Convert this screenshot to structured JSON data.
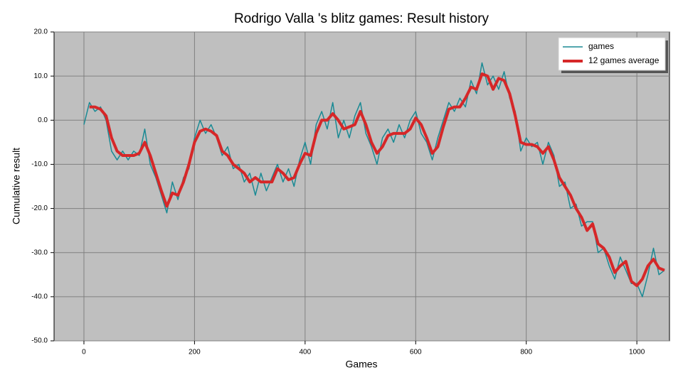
{
  "chart_data": {
    "type": "line",
    "title": "Rodrigo Valla 's blitz games: Result history",
    "x_label": "Games",
    "y_label": "Cumulative result",
    "x": [
      0,
      10,
      20,
      30,
      40,
      50,
      60,
      70,
      80,
      90,
      100,
      110,
      120,
      130,
      140,
      150,
      160,
      170,
      180,
      190,
      200,
      210,
      220,
      230,
      240,
      250,
      260,
      270,
      280,
      290,
      300,
      310,
      320,
      330,
      340,
      350,
      360,
      370,
      380,
      390,
      400,
      410,
      420,
      430,
      440,
      450,
      460,
      470,
      480,
      490,
      500,
      510,
      520,
      530,
      540,
      550,
      560,
      570,
      580,
      590,
      600,
      610,
      620,
      630,
      640,
      650,
      660,
      670,
      680,
      690,
      700,
      710,
      720,
      730,
      740,
      750,
      760,
      770,
      780,
      790,
      800,
      810,
      820,
      830,
      840,
      850,
      860,
      870,
      880,
      890,
      900,
      910,
      920,
      930,
      940,
      950,
      960,
      970,
      980,
      990,
      1000,
      1010,
      1020,
      1030,
      1040,
      1050
    ],
    "series": [
      {
        "name": "games",
        "color": "#1a8a94",
        "width": 1.5,
        "values": [
          -1,
          4,
          2,
          3,
          0,
          -7,
          -9,
          -7,
          -9,
          -7,
          -8,
          -2,
          -10,
          -13,
          -17,
          -21,
          -14,
          -18,
          -13,
          -11,
          -4,
          0,
          -3,
          -1,
          -4,
          -8,
          -6,
          -11,
          -10,
          -14,
          -12,
          -17,
          -12,
          -16,
          -13,
          -10,
          -14,
          -11,
          -15,
          -9,
          -5,
          -10,
          -1,
          2,
          -2,
          4,
          -4,
          0,
          -4,
          1,
          4,
          -3,
          -6,
          -10,
          -4,
          -2,
          -5,
          -1,
          -4,
          0,
          2,
          -3,
          -5,
          -9,
          -4,
          0,
          4,
          2,
          5,
          3,
          9,
          6,
          13,
          8,
          10,
          7,
          11,
          5,
          2,
          -7,
          -4,
          -6,
          -5,
          -10,
          -5,
          -8,
          -15,
          -14,
          -20,
          -19,
          -24,
          -23,
          -23,
          -30,
          -29,
          -33,
          -36,
          -31,
          -34,
          -37,
          -37,
          -40,
          -35,
          -29,
          -35,
          -34
        ]
      },
      {
        "name": "12 games average",
        "color": "#d62728",
        "width": 4,
        "values": [
          null,
          3,
          3,
          2.5,
          1,
          -4,
          -7,
          -8,
          -8,
          -8,
          -7.5,
          -5,
          -8,
          -12,
          -16,
          -19.5,
          -16.5,
          -17,
          -14,
          -10,
          -5,
          -2.5,
          -2,
          -2.5,
          -3.5,
          -7,
          -8,
          -10,
          -11,
          -12,
          -14,
          -13,
          -14,
          -14,
          -14,
          -11,
          -12,
          -13.5,
          -13,
          -10,
          -7.5,
          -8,
          -3,
          0,
          0,
          1.5,
          0,
          -2,
          -1.5,
          -1,
          2,
          -1,
          -5,
          -7.5,
          -6,
          -3.5,
          -3,
          -3,
          -3,
          -2,
          0.5,
          -1,
          -4,
          -7.5,
          -6,
          -1.5,
          2.5,
          3,
          3,
          5,
          7.5,
          7,
          10.5,
          10,
          7,
          9.5,
          9,
          6,
          1,
          -5,
          -5.5,
          -5.5,
          -6,
          -7.5,
          -6,
          -9,
          -13,
          -15,
          -17,
          -20,
          -22,
          -25,
          -23.5,
          -28,
          -29,
          -31,
          -34.5,
          -33,
          -32,
          -36.5,
          -37.5,
          -36,
          -33,
          -31.5,
          -33.5,
          -34
        ]
      }
    ],
    "xlim": [
      -54,
      1059
    ],
    "xticks": [
      0,
      200,
      400,
      600,
      800,
      1000
    ],
    "ylim": [
      -50,
      20
    ],
    "yticks": [
      {
        "value": -50,
        "label": "-50.0"
      },
      {
        "value": -40,
        "label": "-40.0"
      },
      {
        "value": -30,
        "label": "-30.0"
      },
      {
        "value": -20,
        "label": "-20.0"
      },
      {
        "value": -10,
        "label": "-10.0"
      },
      {
        "value": 0,
        "label": "0.0"
      },
      {
        "value": 10,
        "label": "10.0"
      },
      {
        "value": 20,
        "label": "20.0"
      }
    ],
    "grid": true,
    "legend": "upper right"
  }
}
